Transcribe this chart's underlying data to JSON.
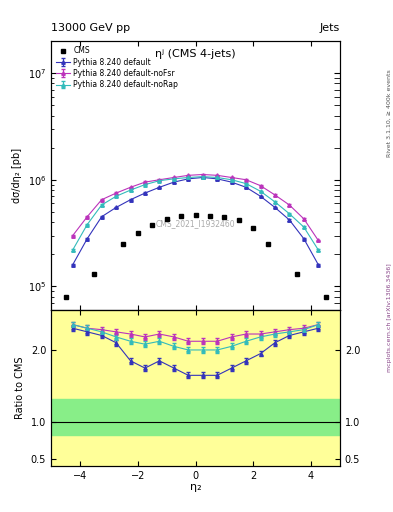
{
  "title_left": "13000 GeV pp",
  "title_right": "Jets",
  "plot_title": "ηʲ (CMS 4-jets)",
  "xlabel": "η₂",
  "ylabel_main": "dσ/dη₂ [pb]",
  "ylabel_ratio": "Ratio to CMS",
  "watermark": "CMS_2021_I1932460",
  "right_label_top": "Rivet 3.1.10, ≥ 400k events",
  "right_label_bot": "mcplots.cern.ch [arXiv:1306.3436]",
  "cms_eta": [
    -4.5,
    -3.5,
    -2.5,
    -2.0,
    -1.5,
    -1.0,
    -0.5,
    0.0,
    0.5,
    1.0,
    1.5,
    2.0,
    2.5,
    3.5,
    4.5
  ],
  "cms_vals": [
    80000.0,
    130000.0,
    250000.0,
    320000.0,
    380000.0,
    430000.0,
    460000.0,
    470000.0,
    460000.0,
    450000.0,
    420000.0,
    350000.0,
    250000.0,
    130000.0,
    80000.0
  ],
  "pythia_eta": [
    -4.25,
    -3.75,
    -3.25,
    -2.75,
    -2.25,
    -1.75,
    -1.25,
    -0.75,
    -0.25,
    0.25,
    0.75,
    1.25,
    1.75,
    2.25,
    2.75,
    3.25,
    3.75,
    4.25
  ],
  "pythia_default_vals": [
    160000.0,
    280000.0,
    450000.0,
    550000.0,
    650000.0,
    750000.0,
    850000.0,
    950000.0,
    1020000.0,
    1050000.0,
    1020000.0,
    950000.0,
    850000.0,
    700000.0,
    550000.0,
    420000.0,
    280000.0,
    160000.0
  ],
  "pythia_noFsr_vals": [
    300000.0,
    450000.0,
    650000.0,
    750000.0,
    850000.0,
    950000.0,
    1000000.0,
    1050000.0,
    1100000.0,
    1120000.0,
    1100000.0,
    1050000.0,
    1000000.0,
    880000.0,
    720000.0,
    580000.0,
    430000.0,
    270000.0
  ],
  "pythia_noRap_vals": [
    220000.0,
    380000.0,
    580000.0,
    700000.0,
    800000.0,
    900000.0,
    980000.0,
    1020000.0,
    1050000.0,
    1070000.0,
    1050000.0,
    1000000.0,
    920000.0,
    780000.0,
    620000.0,
    480000.0,
    360000.0,
    220000.0
  ],
  "ratio_default": [
    2.3,
    2.25,
    2.2,
    2.1,
    1.85,
    1.75,
    1.85,
    1.75,
    1.65,
    1.65,
    1.65,
    1.75,
    1.85,
    1.95,
    2.1,
    2.2,
    2.25,
    2.3
  ],
  "ratio_noFsr": [
    2.35,
    2.3,
    2.28,
    2.25,
    2.22,
    2.18,
    2.22,
    2.18,
    2.12,
    2.12,
    2.12,
    2.18,
    2.22,
    2.22,
    2.25,
    2.28,
    2.3,
    2.35
  ],
  "ratio_noRap": [
    2.35,
    2.3,
    2.25,
    2.18,
    2.12,
    2.08,
    2.12,
    2.05,
    2.0,
    2.0,
    2.0,
    2.05,
    2.12,
    2.18,
    2.22,
    2.25,
    2.28,
    2.35
  ],
  "color_default": "#3333bb",
  "color_noFsr": "#bb33bb",
  "color_noRap": "#33bbbb",
  "color_cms": "black",
  "ylim_main": [
    60000.0,
    20000000.0
  ],
  "ylim_ratio": [
    0.4,
    2.55
  ],
  "yticks_ratio": [
    0.5,
    1.0,
    2.0
  ],
  "xlim": [
    -5.0,
    5.0
  ],
  "xticks": [
    -4,
    -2,
    0,
    2,
    4
  ]
}
